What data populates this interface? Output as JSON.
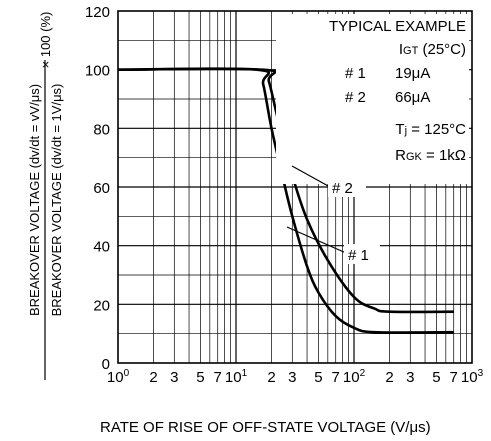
{
  "chart_data": {
    "type": "line",
    "x_scale": "log",
    "x_range": [
      1,
      1000
    ],
    "ylim": [
      0,
      120
    ],
    "y_ticks": [
      0,
      20,
      40,
      60,
      80,
      100,
      120
    ],
    "x_tick_labels": [
      {
        "x": 1,
        "base": "10",
        "exp": "0"
      },
      {
        "x": 2,
        "base": "2",
        "exp": ""
      },
      {
        "x": 3,
        "base": "3",
        "exp": ""
      },
      {
        "x": 5,
        "base": "5",
        "exp": ""
      },
      {
        "x": 7,
        "base": "7",
        "exp": ""
      },
      {
        "x": 10,
        "base": "10",
        "exp": "1"
      },
      {
        "x": 20,
        "base": "2",
        "exp": ""
      },
      {
        "x": 30,
        "base": "3",
        "exp": ""
      },
      {
        "x": 50,
        "base": "5",
        "exp": ""
      },
      {
        "x": 70,
        "base": "7",
        "exp": ""
      },
      {
        "x": 100,
        "base": "10",
        "exp": "2"
      },
      {
        "x": 200,
        "base": "2",
        "exp": ""
      },
      {
        "x": 300,
        "base": "3",
        "exp": ""
      },
      {
        "x": 500,
        "base": "5",
        "exp": ""
      },
      {
        "x": 700,
        "base": "7",
        "exp": ""
      },
      {
        "x": 1000,
        "base": "10",
        "exp": "3"
      }
    ],
    "grid": true,
    "ylabel_top": "BREAKOVER VOLTAGE (dv/dt = vV/μs)",
    "ylabel_bottom": "BREAKOVER VOLTAGE (dv/dt = 1V/μs)",
    "ylabel_factor": "× 100 (%)",
    "xlabel": "RATE OF RISE OF OFF-STATE VOLTAGE  (V/μs)",
    "series": [
      {
        "name": "# 1",
        "points": [
          [
            1,
            100
          ],
          [
            15,
            100
          ],
          [
            17,
            95
          ],
          [
            20,
            80
          ],
          [
            25,
            63
          ],
          [
            30,
            50
          ],
          [
            40,
            33
          ],
          [
            50,
            24
          ],
          [
            70,
            16
          ],
          [
            100,
            12
          ],
          [
            150,
            10.5
          ],
          [
            700,
            10.5
          ]
        ]
      },
      {
        "name": "# 2",
        "points": [
          [
            1,
            100
          ],
          [
            17,
            100
          ],
          [
            19,
            96
          ],
          [
            23,
            82
          ],
          [
            30,
            64
          ],
          [
            40,
            49
          ],
          [
            60,
            35
          ],
          [
            100,
            22.5
          ],
          [
            150,
            18.5
          ],
          [
            200,
            17.5
          ],
          [
            700,
            17.5
          ]
        ]
      }
    ],
    "annotations": {
      "typical": "TYPICAL EXAMPLE",
      "igt_main": "I",
      "igt_sub": "GT",
      "igt_cond": " (25°C)",
      "row1_id": "# 1",
      "row1_val": "19μA",
      "row2_id": "# 2",
      "row2_val": "66μA",
      "tj_main": "T",
      "tj_sub": "j",
      "tj_val": " = 125°C",
      "rgk_main": "R",
      "rgk_sub": "GK",
      "rgk_val": " = 1kΩ",
      "label1": "# 1",
      "label2": "# 2"
    },
    "colors": {
      "line": "#000000",
      "grid": "#000000",
      "background": "#ffffff"
    }
  }
}
